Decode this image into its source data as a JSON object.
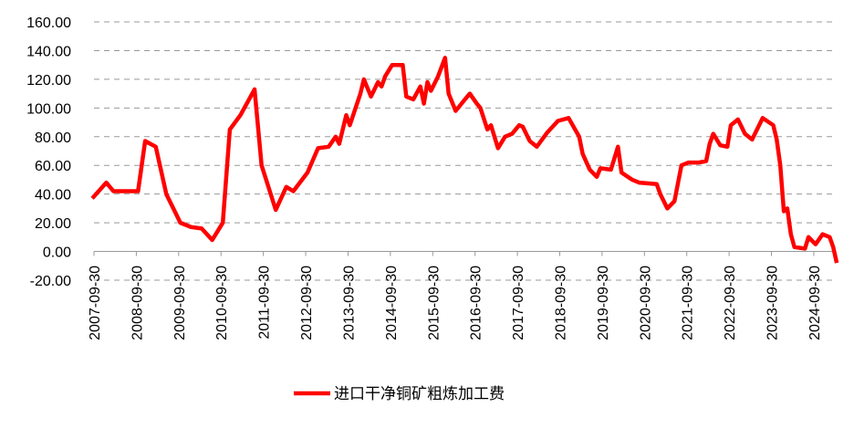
{
  "chart_data": {
    "type": "line",
    "x": [
      "2007-09",
      "2008-01",
      "2008-03",
      "2008-10",
      "2008-12",
      "2009-03",
      "2009-06",
      "2009-10",
      "2010-01",
      "2010-04",
      "2010-07",
      "2010-10",
      "2010-12",
      "2011-03",
      "2011-07",
      "2011-09",
      "2012-01",
      "2012-04",
      "2012-06",
      "2012-10",
      "2013-01",
      "2013-04",
      "2013-06",
      "2013-07",
      "2013-09",
      "2013-10",
      "2014-01",
      "2014-02",
      "2014-04",
      "2014-06",
      "2014-07",
      "2014-08",
      "2014-10",
      "2015-01",
      "2015-02",
      "2015-04",
      "2015-06",
      "2015-07",
      "2015-08",
      "2015-09",
      "2015-11",
      "2016-01",
      "2016-02",
      "2016-04",
      "2016-06",
      "2016-08",
      "2016-10",
      "2016-11",
      "2017-01",
      "2017-02",
      "2017-04",
      "2017-06",
      "2017-08",
      "2017-10",
      "2017-11",
      "2018-01",
      "2018-03",
      "2018-06",
      "2018-09",
      "2018-12",
      "2019-03",
      "2019-04",
      "2019-06",
      "2019-08",
      "2019-09",
      "2019-12",
      "2020-02",
      "2020-03",
      "2020-06",
      "2020-08",
      "2021-01",
      "2021-02",
      "2021-04",
      "2021-06",
      "2021-08",
      "2021-10",
      "2022-01",
      "2022-03",
      "2022-04",
      "2022-05",
      "2022-07",
      "2022-09",
      "2022-10",
      "2022-12",
      "2023-02",
      "2023-04",
      "2023-06",
      "2023-07",
      "2023-10",
      "2023-11",
      "2023-12",
      "2024-01",
      "2024-02",
      "2024-03",
      "2024-04",
      "2024-07",
      "2024-08",
      "2024-10",
      "2024-12",
      "2025-02",
      "2025-03",
      "2025-04"
    ],
    "series": [
      {
        "name": "进口干净铜矿粗炼加工费",
        "color": "#ff0000",
        "values": [
          37,
          48,
          42,
          42,
          77,
          73,
          40,
          20,
          17,
          16,
          8,
          20,
          85,
          95,
          113,
          60,
          29,
          45,
          42,
          55,
          72,
          73,
          80,
          75,
          95,
          88,
          110,
          120,
          108,
          118,
          115,
          122,
          130,
          130,
          108,
          106,
          115,
          103,
          118,
          112,
          122,
          135,
          110,
          98,
          104,
          110,
          103,
          100,
          85,
          88,
          72,
          80,
          82,
          88,
          87,
          77,
          73,
          83,
          91,
          93,
          80,
          68,
          57,
          52,
          58,
          57,
          73,
          55,
          50,
          48,
          47,
          40,
          30,
          35,
          60,
          62,
          62,
          63,
          75,
          82,
          74,
          73,
          88,
          92,
          82,
          78,
          88,
          93,
          88,
          78,
          60,
          28,
          30,
          12,
          3,
          2,
          10,
          5,
          12,
          10,
          3,
          -8
        ]
      }
    ],
    "xlim": [
      "2007-09-30",
      "2025-04-30"
    ],
    "xticks": [
      "2007-09-30",
      "2008-09-30",
      "2009-09-30",
      "2010-09-30",
      "2011-09-30",
      "2012-09-30",
      "2013-09-30",
      "2014-09-30",
      "2015-09-30",
      "2016-09-30",
      "2017-09-30",
      "2018-09-30",
      "2019-09-30",
      "2020-09-30",
      "2021-09-30",
      "2022-09-30",
      "2023-09-30",
      "2024-09-30"
    ],
    "ylim": [
      -20,
      160
    ],
    "yticks": [
      {
        "value": -20,
        "label": "-20.00"
      },
      {
        "value": 0,
        "label": "0.00"
      },
      {
        "value": 20,
        "label": "20.00"
      },
      {
        "value": 40,
        "label": "40.00"
      },
      {
        "value": 60,
        "label": "60.00"
      },
      {
        "value": 80,
        "label": "80.00"
      },
      {
        "value": 100,
        "label": "100.00"
      },
      {
        "value": 120,
        "label": "120.00"
      },
      {
        "value": 140,
        "label": "140.00"
      },
      {
        "value": 160,
        "label": "160.00"
      }
    ],
    "grid": true,
    "legend": "bottom"
  }
}
